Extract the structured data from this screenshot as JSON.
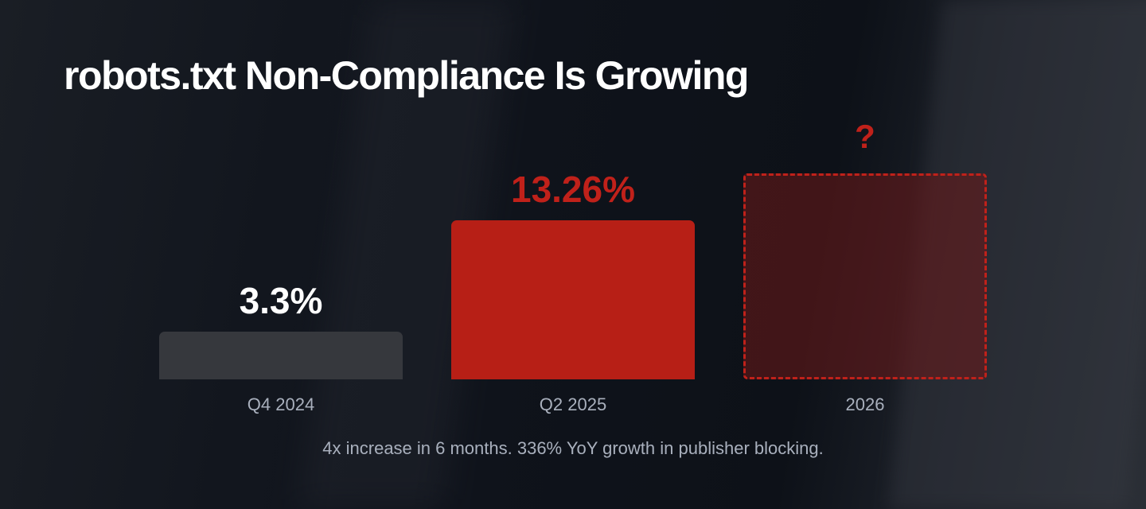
{
  "chart_data": {
    "type": "bar",
    "title": "robots.txt Non-Compliance Is Growing",
    "categories": [
      "Q4 2024",
      "Q2 2025",
      "2026"
    ],
    "values": [
      3.3,
      13.26,
      null
    ],
    "data_labels": [
      "3.3%",
      "13.26%",
      "?"
    ],
    "bar_styles": [
      "solid",
      "solid",
      "dashed-projection"
    ],
    "colors": [
      "#36383d",
      "#b71f16",
      "#c0211a"
    ],
    "label_colors": [
      "#ffffff",
      "#c0211a",
      "#c0211a"
    ],
    "grid": false,
    "footnote": "4x increase in 6 months. 336% YoY growth in publisher blocking."
  }
}
